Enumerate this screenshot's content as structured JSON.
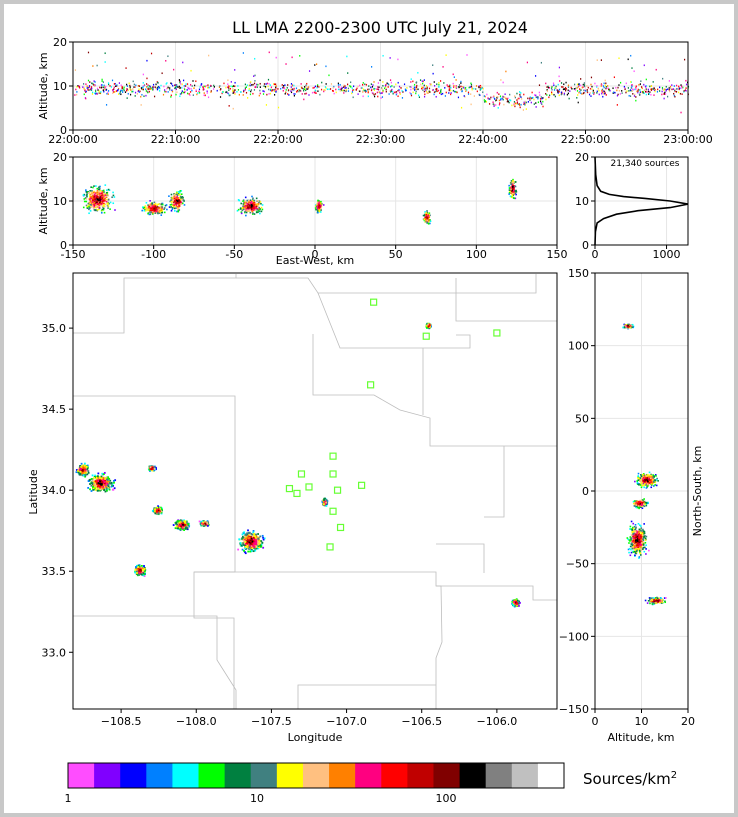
{
  "chart_data": [
    {
      "panel": "time-height",
      "type": "scatter",
      "title": "LL LMA 2200-2300 UTC July 21, 2024",
      "xlabel": "",
      "ylabel": "Altitude, km",
      "x_ticks": [
        "22:00:00",
        "22:10:00",
        "22:20:00",
        "22:30:00",
        "22:40:00",
        "22:50:00",
        "23:00:00"
      ],
      "xlim_minutes": [
        0,
        60
      ],
      "ylim": [
        0,
        20
      ],
      "y_ticks": [
        0,
        10,
        20
      ],
      "core_altitude_km": 9.5,
      "altitude_spread_km": [
        4,
        18
      ]
    },
    {
      "panel": "east-west-altitude",
      "type": "scatter",
      "xlabel": "East-West, km",
      "ylabel": "Altitude, km",
      "xlim": [
        -150,
        150
      ],
      "ylim": [
        0,
        20
      ],
      "x_ticks": [
        -150,
        -100,
        -50,
        0,
        50,
        100,
        150
      ],
      "y_ticks": [
        0,
        10,
        20
      ],
      "clusters": [
        {
          "x": -135,
          "alt": 10.5,
          "spread_x": 12,
          "spread_alt": 4
        },
        {
          "x": -100,
          "alt": 8.5,
          "spread_x": 10,
          "spread_alt": 2
        },
        {
          "x": -86,
          "alt": 10,
          "spread_x": 6,
          "spread_alt": 3
        },
        {
          "x": -40,
          "alt": 9,
          "spread_x": 10,
          "spread_alt": 2.5
        },
        {
          "x": 2,
          "alt": 9,
          "spread_x": 3,
          "spread_alt": 2
        },
        {
          "x": 69,
          "alt": 6.5,
          "spread_x": 3,
          "spread_alt": 2
        },
        {
          "x": 122,
          "alt": 13,
          "spread_x": 3,
          "spread_alt": 3
        }
      ]
    },
    {
      "panel": "altitude-histogram",
      "type": "line",
      "annotation": "21,340 sources",
      "xlim": [
        0,
        1300
      ],
      "ylim": [
        0,
        20
      ],
      "x_ticks": [
        0,
        1000
      ],
      "y_ticks": [
        0,
        10,
        20
      ],
      "points": [
        [
          0,
          0
        ],
        [
          5,
          3
        ],
        [
          30,
          5
        ],
        [
          120,
          6
        ],
        [
          300,
          7
        ],
        [
          600,
          7.8
        ],
        [
          1050,
          8.5
        ],
        [
          1330,
          9.3
        ],
        [
          1050,
          10
        ],
        [
          700,
          10.6
        ],
        [
          400,
          11
        ],
        [
          200,
          11.5
        ],
        [
          80,
          12.2
        ],
        [
          30,
          13.5
        ],
        [
          10,
          16
        ],
        [
          0,
          20
        ]
      ]
    },
    {
      "panel": "plan-view",
      "type": "scatter",
      "xlabel": "Longitude",
      "ylabel": "Latitude",
      "xlim": [
        -108.82,
        -105.6
      ],
      "ylim": [
        32.65,
        35.34
      ],
      "x_ticks": [
        -108.5,
        -108.0,
        -107.5,
        -107.0,
        -106.5,
        -106.0
      ],
      "y_ticks": [
        33.0,
        33.5,
        34.0,
        34.5,
        35.0
      ],
      "stations": [
        [
          -106.82,
          35.16
        ],
        [
          -106.47,
          34.95
        ],
        [
          -106.0,
          34.97
        ],
        [
          -106.84,
          34.65
        ],
        [
          -107.09,
          34.21
        ],
        [
          -107.3,
          34.1
        ],
        [
          -107.09,
          34.1
        ],
        [
          -107.38,
          34.01
        ],
        [
          -107.25,
          34.02
        ],
        [
          -107.06,
          34.0
        ],
        [
          -106.9,
          34.03
        ],
        [
          -107.33,
          33.98
        ],
        [
          -107.09,
          33.87
        ],
        [
          -107.04,
          33.77
        ],
        [
          -107.11,
          33.65
        ]
      ],
      "clusters": [
        {
          "lon": -108.64,
          "lat": 34.05,
          "spread_lon": 0.1,
          "spread_lat": 0.07
        },
        {
          "lon": -108.76,
          "lat": 34.13,
          "spread_lon": 0.05,
          "spread_lat": 0.05
        },
        {
          "lon": -108.3,
          "lat": 34.14,
          "spread_lon": 0.03,
          "spread_lat": 0.02
        },
        {
          "lon": -108.26,
          "lat": 33.88,
          "spread_lon": 0.04,
          "spread_lat": 0.03
        },
        {
          "lon": -108.1,
          "lat": 33.79,
          "spread_lon": 0.06,
          "spread_lat": 0.04
        },
        {
          "lon": -107.95,
          "lat": 33.8,
          "spread_lon": 0.04,
          "spread_lat": 0.02
        },
        {
          "lon": -108.38,
          "lat": 33.51,
          "spread_lon": 0.05,
          "spread_lat": 0.04
        },
        {
          "lon": -107.64,
          "lat": 33.69,
          "spread_lon": 0.1,
          "spread_lat": 0.08
        },
        {
          "lon": -107.15,
          "lat": 33.93,
          "spread_lon": 0.02,
          "spread_lat": 0.03
        },
        {
          "lon": -106.46,
          "lat": 35.02,
          "spread_lon": 0.02,
          "spread_lat": 0.02
        },
        {
          "lon": -105.88,
          "lat": 33.31,
          "spread_lon": 0.03,
          "spread_lat": 0.03
        }
      ]
    },
    {
      "panel": "altitude-north-south",
      "type": "scatter",
      "xlabel": "Altitude, km",
      "ylabel": "North-South, km",
      "xlim": [
        0,
        20
      ],
      "ylim": [
        -150,
        150
      ],
      "x_ticks": [
        0,
        10,
        20
      ],
      "y_ticks": [
        -150,
        -100,
        -50,
        0,
        50,
        100,
        150
      ],
      "clusters": [
        {
          "alt": 7,
          "y": 114,
          "spread_alt": 1.5,
          "spread_y": 2
        },
        {
          "alt": 11,
          "y": 8,
          "spread_alt": 3,
          "spread_y": 6
        },
        {
          "alt": 9.5,
          "y": -8,
          "spread_alt": 2,
          "spread_y": 4
        },
        {
          "alt": 9,
          "y": -33,
          "spread_alt": 2.5,
          "spread_y": 14
        },
        {
          "alt": 13,
          "y": -75,
          "spread_alt": 2.5,
          "spread_y": 3
        }
      ]
    }
  ],
  "colorbar": {
    "label": "Sources/km",
    "label_superscript": "2",
    "tick_labels": [
      "1",
      "10",
      "100"
    ],
    "colors": [
      "#ff4dff",
      "#8000ff",
      "#0000ff",
      "#0080ff",
      "#00ffff",
      "#00ff00",
      "#008040",
      "#408080",
      "#ffff00",
      "#ffc080",
      "#ff8000",
      "#ff0080",
      "#ff0000",
      "#c00000",
      "#800000",
      "#000000",
      "#808080",
      "#c0c0c0",
      "#ffffff"
    ]
  }
}
